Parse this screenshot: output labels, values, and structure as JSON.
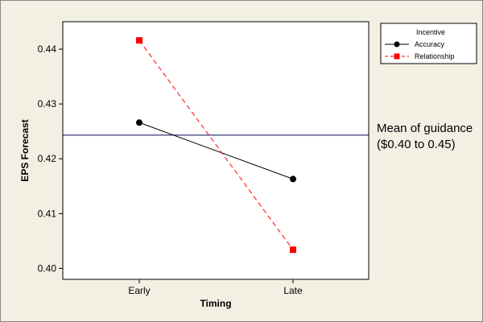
{
  "chart_data": {
    "type": "line",
    "categories": [
      "Early",
      "Late"
    ],
    "xlabel": "Timing",
    "ylabel": "EPS Forecast",
    "ylim": [
      0.398,
      0.445
    ],
    "yticks": [
      0.4,
      0.41,
      0.42,
      0.43,
      0.44
    ],
    "yticklabels": [
      "0.40",
      "0.41",
      "0.42",
      "0.43",
      "0.44"
    ],
    "grid": false,
    "legend": {
      "title": "Incentive",
      "placement": "top-right-outside"
    },
    "series": [
      {
        "name": "Accuracy",
        "values": [
          0.4266,
          0.4163
        ],
        "color": "#000000",
        "marker": "circle",
        "linestyle": "solid"
      },
      {
        "name": "Relationship",
        "values": [
          0.4416,
          0.4034
        ],
        "color": "#ff0000",
        "marker": "square",
        "linestyle": "dashed"
      }
    ],
    "reference_line": {
      "y": 0.4243,
      "color": "#00005a",
      "label_lines": [
        "Mean of guidance",
        "($0.40 to 0.45)"
      ]
    },
    "colors": {
      "outer_background": "#f2efe3",
      "plot_background": "#ffffff",
      "frame": "#000000"
    }
  }
}
